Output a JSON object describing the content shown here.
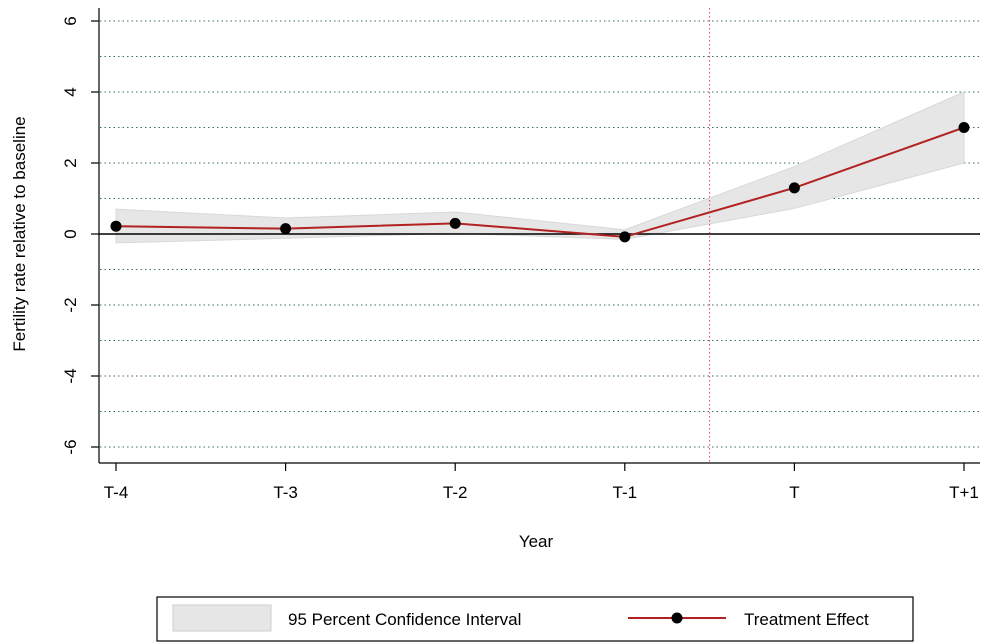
{
  "chart_data": {
    "type": "line",
    "title": "",
    "xlabel": "Year",
    "ylabel": "Fertility rate relative to baseline",
    "categories": [
      "T-4",
      "T-3",
      "T-2",
      "T-1",
      "T",
      "T+1"
    ],
    "ylim": [
      -6,
      6
    ],
    "yticks": [
      "-6",
      "-4",
      "-2",
      "0",
      "2",
      "4",
      "6"
    ],
    "grid": "dotted horizontal",
    "series": [
      {
        "name": "Treatment Effect",
        "values": [
          0.22,
          0.15,
          0.3,
          -0.08,
          1.3,
          3.0
        ],
        "color": "#b22222",
        "marker": "circle"
      }
    ],
    "confidence_interval": {
      "name": "95 Percent Confidence Interval",
      "lower": [
        -0.25,
        -0.12,
        0.02,
        -0.15,
        0.72,
        2.0
      ],
      "upper": [
        0.7,
        0.45,
        0.62,
        0.12,
        1.9,
        4.0
      ],
      "color": "#e6e6e6"
    },
    "reference_lines": {
      "y_zero_color": "#000000",
      "vertical_between": [
        "T-1",
        "T"
      ],
      "vertical_color": "#e04848"
    },
    "legend": {
      "position": "bottom",
      "entries": [
        "95 Percent Confidence Interval",
        "Treatment Effect"
      ]
    }
  }
}
